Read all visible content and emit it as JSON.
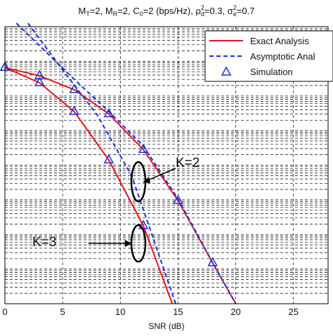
{
  "chart_data": {
    "type": "line",
    "title_parts": {
      "mt": "M",
      "mt_sub": "T",
      "mt_val": "=2, ",
      "mr": "M",
      "mr_sub": "R",
      "mr_val": "=2, C",
      "c_sub": "0",
      "c_val": "=2 (bps/Hz), ",
      "rho": "ρ",
      "rho_sup": "2",
      "rho_sub": "d",
      "rho_val": "=0.3, ",
      "sig": "σ",
      "sig_sup": "2",
      "sig_sub": "e",
      "sig_val": "=0.7"
    },
    "xlabel": "SNR (dB)",
    "xlim": [
      0,
      28
    ],
    "x_ticks": [
      0,
      5,
      10,
      15,
      20,
      25
    ],
    "yscale": "log",
    "y_decades": [
      -7,
      1
    ],
    "grid": true,
    "legend_position": "top-right",
    "legend": [
      {
        "label": "Exact Analysis",
        "style": "solid",
        "color": "#e8141c"
      },
      {
        "label": "Asymptotic Anal",
        "style": "dashed",
        "color": "#1a2dd8"
      },
      {
        "label": "Simulation",
        "style": "marker",
        "color": "#1a2dd8"
      }
    ],
    "annotations": [
      {
        "text": "K=2"
      },
      {
        "text": "K=3"
      }
    ],
    "series": [
      {
        "group": "K=2",
        "kind": "exact",
        "x": [
          0,
          3,
          6,
          9,
          12,
          15,
          18,
          20
        ],
        "log10y": [
          -0.18,
          -0.42,
          -0.82,
          -1.52,
          -2.55,
          -4.02,
          -5.82,
          -7.0
        ]
      },
      {
        "group": "K=2",
        "kind": "asymptotic",
        "x": [
          1,
          3,
          6,
          9,
          12,
          15,
          18,
          20
        ],
        "log10y": [
          1.1,
          0.45,
          -0.52,
          -1.45,
          -2.45,
          -3.97,
          -5.82,
          -7.0
        ]
      },
      {
        "group": "K=2",
        "kind": "simulation",
        "x": [
          0,
          3,
          6,
          9,
          12,
          15,
          18
        ],
        "log10y": [
          -0.18,
          -0.42,
          -0.82,
          -1.52,
          -2.55,
          -4.02,
          -5.82
        ]
      },
      {
        "group": "K=3",
        "kind": "exact",
        "x": [
          0,
          3,
          6,
          9,
          12,
          14.5
        ],
        "log10y": [
          -0.18,
          -0.62,
          -1.45,
          -2.85,
          -4.75,
          -7.0
        ]
      },
      {
        "group": "K=3",
        "kind": "asymptotic",
        "x": [
          2,
          5,
          8,
          11,
          14.8
        ],
        "log10y": [
          1.1,
          -0.25,
          -1.55,
          -3.32,
          -7.0
        ]
      },
      {
        "group": "K=3",
        "kind": "simulation",
        "x": [
          0,
          3,
          6,
          9,
          12
        ],
        "log10y": [
          -0.18,
          -0.62,
          -1.45,
          -2.85,
          -4.75
        ]
      }
    ]
  }
}
